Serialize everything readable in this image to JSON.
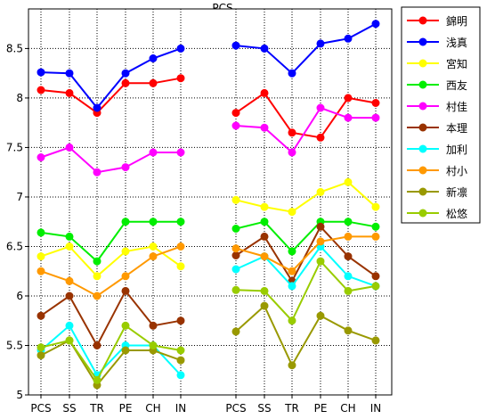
{
  "chart_data": {
    "type": "line",
    "title": "PCS",
    "xlabel": "",
    "ylabel": "",
    "ylim": [
      5,
      8.9
    ],
    "yticks": [
      5,
      5.5,
      6,
      6.5,
      7,
      7.5,
      8,
      8.5
    ],
    "ytick_labels": [
      "5",
      "5.5",
      "6",
      "6.5",
      "7",
      "7.5",
      "8",
      "8.5"
    ],
    "categories": [
      "PCS",
      "SS",
      "TR",
      "PE",
      "CH",
      "IN"
    ],
    "grid": true,
    "legend": "right",
    "panels": [
      {
        "series": [
          {
            "name": "錦明",
            "color": "#ff0000",
            "values": [
              8.08,
              8.05,
              7.85,
              8.15,
              8.15,
              8.2
            ]
          },
          {
            "name": "浅真",
            "color": "#0000ff",
            "values": [
              8.26,
              8.25,
              7.9,
              8.25,
              8.4,
              8.5
            ]
          },
          {
            "name": "宮知",
            "color": "#ffff00",
            "values": [
              6.4,
              6.5,
              6.2,
              6.45,
              6.5,
              6.3
            ]
          },
          {
            "name": "西友",
            "color": "#00ee00",
            "values": [
              6.64,
              6.6,
              6.35,
              6.75,
              6.75,
              6.75
            ]
          },
          {
            "name": "村佳",
            "color": "#ff00ff",
            "values": [
              7.4,
              7.5,
              7.25,
              7.3,
              7.45,
              7.45
            ]
          },
          {
            "name": "本理",
            "color": "#993300",
            "values": [
              5.8,
              6.0,
              5.5,
              6.05,
              5.7,
              5.75
            ]
          },
          {
            "name": "加利",
            "color": "#00ffff",
            "values": [
              5.45,
              5.7,
              5.2,
              5.5,
              5.5,
              5.2
            ]
          },
          {
            "name": "村小",
            "color": "#ff9900",
            "values": [
              6.25,
              6.15,
              6.0,
              6.2,
              6.4,
              6.5
            ]
          },
          {
            "name": "新凛",
            "color": "#999900",
            "values": [
              5.4,
              5.55,
              5.1,
              5.45,
              5.45,
              5.35
            ]
          },
          {
            "name": "松悠",
            "color": "#99cc00",
            "values": [
              5.48,
              5.55,
              5.15,
              5.7,
              5.5,
              5.45
            ]
          }
        ]
      },
      {
        "series": [
          {
            "name": "錦明",
            "color": "#ff0000",
            "values": [
              7.85,
              8.05,
              7.65,
              7.6,
              8.0,
              7.95
            ]
          },
          {
            "name": "浅真",
            "color": "#0000ff",
            "values": [
              8.53,
              8.5,
              8.25,
              8.55,
              8.6,
              8.75
            ]
          },
          {
            "name": "宮知",
            "color": "#ffff00",
            "values": [
              6.97,
              6.9,
              6.85,
              7.05,
              7.15,
              6.9
            ]
          },
          {
            "name": "西友",
            "color": "#00ee00",
            "values": [
              6.68,
              6.75,
              6.45,
              6.75,
              6.75,
              6.7
            ]
          },
          {
            "name": "村佳",
            "color": "#ff00ff",
            "values": [
              7.72,
              7.7,
              7.45,
              7.9,
              7.8,
              7.8
            ]
          },
          {
            "name": "本理",
            "color": "#993300",
            "values": [
              6.41,
              6.6,
              6.15,
              6.7,
              6.4,
              6.2
            ]
          },
          {
            "name": "加利",
            "color": "#00ffff",
            "values": [
              6.27,
              6.4,
              6.1,
              6.5,
              6.2,
              6.1
            ]
          },
          {
            "name": "村小",
            "color": "#ff9900",
            "values": [
              6.48,
              6.4,
              6.25,
              6.55,
              6.6,
              6.6
            ]
          },
          {
            "name": "新凛",
            "color": "#999900",
            "values": [
              5.64,
              5.9,
              5.3,
              5.8,
              5.65,
              5.55
            ]
          },
          {
            "name": "松悠",
            "color": "#99cc00",
            "values": [
              6.06,
              6.05,
              5.75,
              6.35,
              6.05,
              6.1
            ]
          }
        ]
      }
    ]
  }
}
